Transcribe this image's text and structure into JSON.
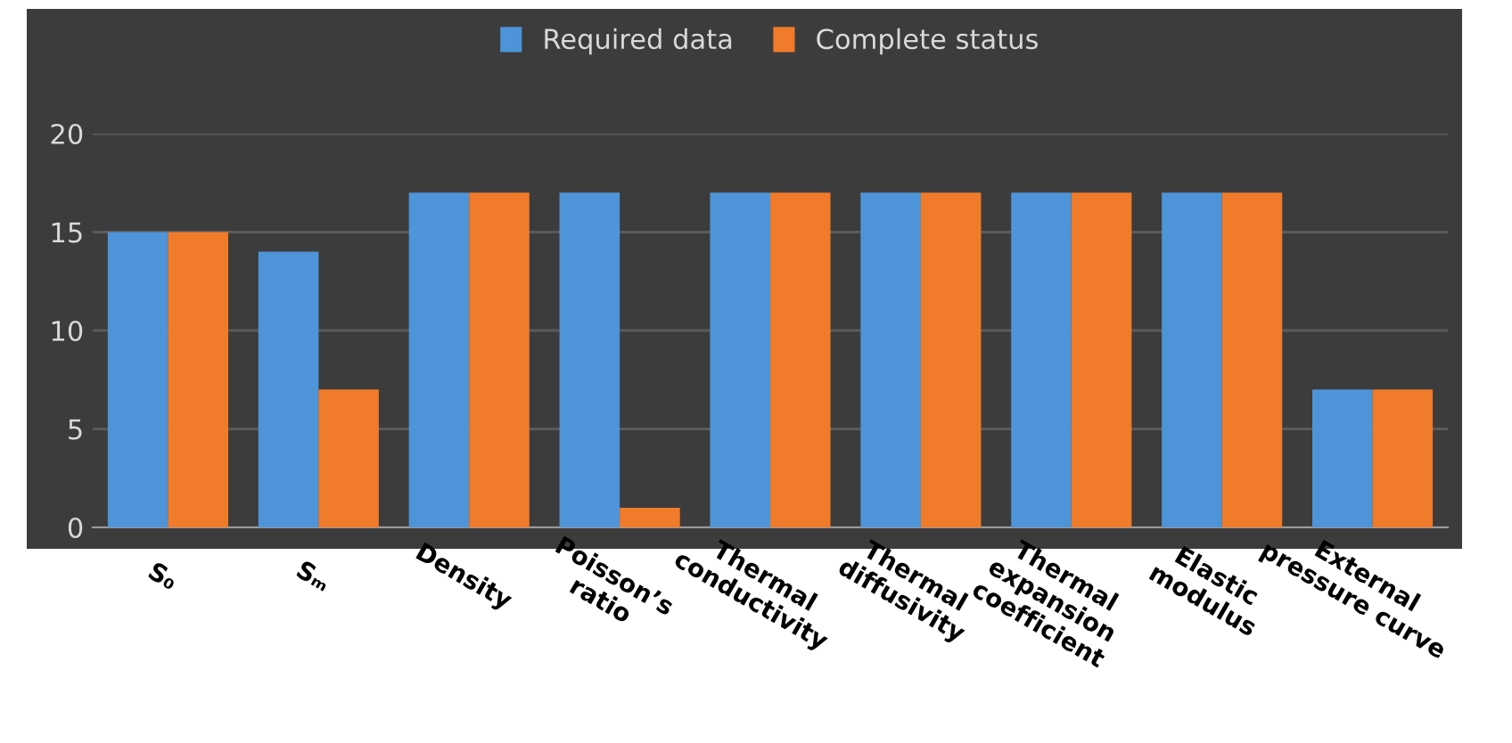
{
  "chart_data": {
    "type": "bar",
    "categories": [
      "S₀",
      "Sₘ",
      "Density",
      "Poisson’s\nratio",
      "Thermal\nconductivity",
      "Thermal\ndiffusivity",
      "Thermal\nexpansion\ncoefficient",
      "Elastic\nmodulus",
      "External\npressure curve"
    ],
    "series": [
      {
        "name": "Required data",
        "color": "#4e94d8",
        "values": [
          15,
          14,
          17,
          17,
          17,
          17,
          17,
          17,
          7
        ]
      },
      {
        "name": "Complete status",
        "color": "#f07b2a",
        "values": [
          15,
          7,
          17,
          1,
          17,
          17,
          17,
          17,
          7
        ]
      }
    ],
    "ylim": [
      0,
      20
    ],
    "yticks": [
      0,
      5,
      10,
      15,
      20
    ],
    "grid": "y",
    "legend": "top"
  }
}
